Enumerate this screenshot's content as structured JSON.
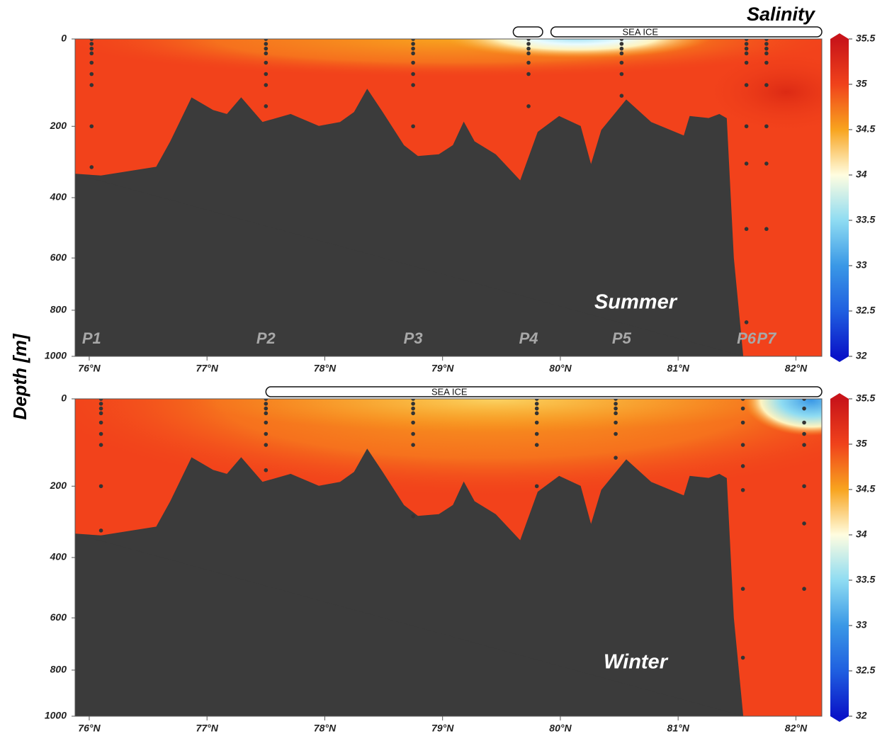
{
  "chart_data": [
    {
      "type": "section",
      "title": "Salinity",
      "ylabel": "Depth [m]",
      "label": "Summer",
      "xlim": [
        75.88,
        82.22
      ],
      "xticks": [
        {
          "value": 76,
          "label": "76°N"
        },
        {
          "value": 77,
          "label": "77°N"
        },
        {
          "value": 78,
          "label": "78°N"
        },
        {
          "value": 79,
          "label": "79°N"
        },
        {
          "value": 80,
          "label": "80°N"
        },
        {
          "value": 81,
          "label": "81°N"
        },
        {
          "value": 82,
          "label": "82°N"
        }
      ],
      "ylim": [
        0,
        1000
      ],
      "yticks": [
        0,
        200,
        400,
        600,
        800,
        1000
      ],
      "sea_ice": [
        [
          79.6,
          79.85
        ],
        [
          79.92,
          82.22
        ]
      ],
      "sea_ice_label": "SEA ICE",
      "stations": [
        {
          "name": "P1",
          "lat": 76.02,
          "depths": [
            0,
            10,
            20,
            30,
            50,
            75,
            100,
            200,
            310
          ]
        },
        {
          "name": "P2",
          "lat": 77.5,
          "depths": [
            0,
            10,
            20,
            30,
            50,
            75,
            100,
            150
          ]
        },
        {
          "name": "P3",
          "lat": 78.75,
          "depths": [
            0,
            10,
            20,
            30,
            50,
            75,
            100,
            200
          ]
        },
        {
          "name": "P4",
          "lat": 79.73,
          "depths": [
            0,
            10,
            20,
            30,
            50,
            75,
            150
          ]
        },
        {
          "name": "P5",
          "lat": 80.52,
          "depths": [
            0,
            10,
            20,
            30,
            50,
            75,
            125
          ]
        },
        {
          "name": "P6",
          "lat": 81.58,
          "depths": [
            0,
            10,
            20,
            30,
            50,
            100,
            200,
            300,
            500,
            850
          ]
        },
        {
          "name": "P7",
          "lat": 81.75,
          "depths": [
            0,
            10,
            20,
            30,
            50,
            100,
            200,
            300,
            500
          ]
        }
      ],
      "bathymetry": {
        "lat": [
          75.88,
          76.1,
          76.57,
          76.69,
          76.87,
          77.05,
          77.17,
          77.29,
          77.47,
          77.71,
          77.95,
          78.13,
          78.25,
          78.36,
          78.49,
          78.67,
          78.79,
          78.97,
          79.09,
          79.18,
          79.27,
          79.45,
          79.66,
          79.81,
          79.99,
          80.17,
          80.26,
          80.35,
          80.56,
          80.77,
          81.05,
          81.1,
          81.26,
          81.35,
          81.41,
          81.47,
          81.55
        ],
        "depth": [
          330,
          335,
          310,
          240,
          130,
          160,
          170,
          130,
          190,
          170,
          200,
          190,
          165,
          110,
          165,
          250,
          280,
          275,
          250,
          190,
          240,
          275,
          350,
          215,
          175,
          200,
          305,
          210,
          135,
          190,
          225,
          175,
          180,
          170,
          180,
          600,
          1000
        ]
      },
      "colorbar": {
        "lim": [
          32,
          35.5
        ],
        "ticks": [
          32,
          32.5,
          33,
          33.5,
          34,
          34.5,
          35,
          35.5
        ],
        "colors": [
          "#0a14c8",
          "#1f5fe0",
          "#3a98e6",
          "#8fdcf2",
          "#fffde0",
          "#f8a41f",
          "#f0421b",
          "#c8141a"
        ]
      }
    },
    {
      "type": "section",
      "label": "Winter",
      "xlim": [
        75.88,
        82.22
      ],
      "xticks": [
        {
          "value": 76,
          "label": "76°N"
        },
        {
          "value": 77,
          "label": "77°N"
        },
        {
          "value": 78,
          "label": "78°N"
        },
        {
          "value": 79,
          "label": "79°N"
        },
        {
          "value": 80,
          "label": "80°N"
        },
        {
          "value": 81,
          "label": "81°N"
        },
        {
          "value": 82,
          "label": "82°N"
        }
      ],
      "ylim": [
        0,
        1000
      ],
      "yticks": [
        0,
        200,
        400,
        600,
        800,
        1000
      ],
      "sea_ice": [
        [
          77.5,
          82.22
        ]
      ],
      "sea_ice_label": "SEA ICE",
      "stations": [
        {
          "lat": 76.1,
          "depths": [
            0,
            10,
            20,
            30,
            50,
            75,
            100,
            200,
            320
          ]
        },
        {
          "lat": 77.5,
          "depths": [
            0,
            10,
            20,
            30,
            50,
            75,
            100,
            160
          ]
        },
        {
          "lat": 78.75,
          "depths": [
            0,
            10,
            20,
            30,
            50,
            75,
            100,
            280
          ]
        },
        {
          "lat": 79.8,
          "depths": [
            0,
            10,
            20,
            30,
            50,
            75,
            100,
            200
          ]
        },
        {
          "lat": 80.47,
          "depths": [
            0,
            10,
            20,
            30,
            50,
            75,
            130
          ]
        },
        {
          "lat": 81.55,
          "depths": [
            0,
            20,
            50,
            100,
            150,
            210,
            500,
            750
          ]
        },
        {
          "lat": 82.07,
          "depths": [
            0,
            20,
            50,
            75,
            100,
            200,
            300,
            500
          ]
        }
      ],
      "bathymetry": {
        "lat": [
          75.88,
          76.1,
          76.57,
          76.69,
          76.87,
          77.05,
          77.17,
          77.29,
          77.47,
          77.71,
          77.95,
          78.13,
          78.25,
          78.36,
          78.49,
          78.67,
          78.79,
          78.97,
          79.09,
          79.18,
          79.27,
          79.45,
          79.66,
          79.81,
          79.99,
          80.17,
          80.26,
          80.35,
          80.56,
          80.77,
          81.05,
          81.1,
          81.26,
          81.35,
          81.41,
          81.47,
          81.55
        ],
        "depth": [
          330,
          335,
          310,
          240,
          130,
          160,
          170,
          130,
          190,
          170,
          200,
          190,
          165,
          110,
          165,
          250,
          280,
          275,
          250,
          190,
          240,
          275,
          350,
          215,
          175,
          200,
          305,
          210,
          135,
          190,
          225,
          175,
          180,
          170,
          180,
          600,
          1000
        ]
      },
      "colorbar": {
        "lim": [
          32,
          35.5
        ],
        "ticks": [
          32,
          32.5,
          33,
          33.5,
          34,
          34.5,
          35,
          35.5
        ],
        "colors": [
          "#0a14c8",
          "#1f5fe0",
          "#3a98e6",
          "#8fdcf2",
          "#fffde0",
          "#f8a41f",
          "#f0421b",
          "#c8141a"
        ]
      }
    }
  ]
}
